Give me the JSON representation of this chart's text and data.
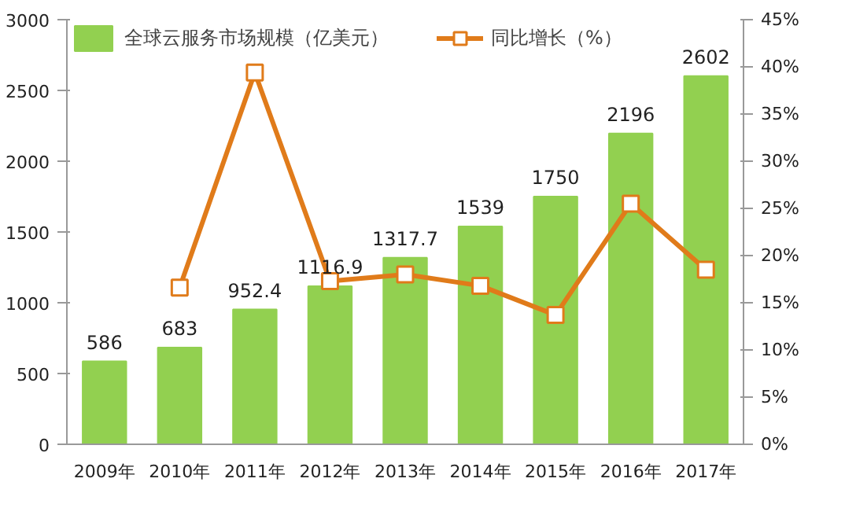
{
  "chart_data": {
    "type": "bar",
    "categories": [
      "2009年",
      "2010年",
      "2011年",
      "2012年",
      "2013年",
      "2014年",
      "2015年",
      "2016年",
      "2017年"
    ],
    "series": [
      {
        "name": "全球云服务市场规模（亿美元）",
        "color": "#92d050",
        "values": [
          586,
          683,
          952.4,
          1116.9,
          1317.7,
          1539,
          1750,
          2196,
          2602
        ],
        "value_labels": [
          "586",
          "683",
          "952.4",
          "1116.9",
          "1317.7",
          "1539",
          "1750",
          "2196",
          "2602"
        ]
      },
      {
        "name": "同比增长（%）",
        "color": "#e07b1a",
        "type": "line",
        "axis": "y2",
        "marker": "square",
        "values": [
          null,
          16.6,
          39.4,
          17.3,
          18.0,
          16.8,
          13.7,
          25.5,
          18.5
        ]
      }
    ],
    "ylim": [
      0,
      3000
    ],
    "yticks": [
      0,
      500,
      1000,
      1500,
      2000,
      2500,
      3000
    ],
    "y2lim": [
      0,
      45
    ],
    "y2ticks": [
      {
        "value": 0,
        "label": "0%"
      },
      {
        "value": 5,
        "label": "5%"
      },
      {
        "value": 10,
        "label": "10%"
      },
      {
        "value": 15,
        "label": "15%"
      },
      {
        "value": 20,
        "label": "20%"
      },
      {
        "value": 25,
        "label": "25%"
      },
      {
        "value": 30,
        "label": "30%"
      },
      {
        "value": 35,
        "label": "35%"
      },
      {
        "value": 40,
        "label": "40%"
      },
      {
        "value": 45,
        "label": "45%"
      }
    ],
    "legend": "top",
    "grid": false
  }
}
